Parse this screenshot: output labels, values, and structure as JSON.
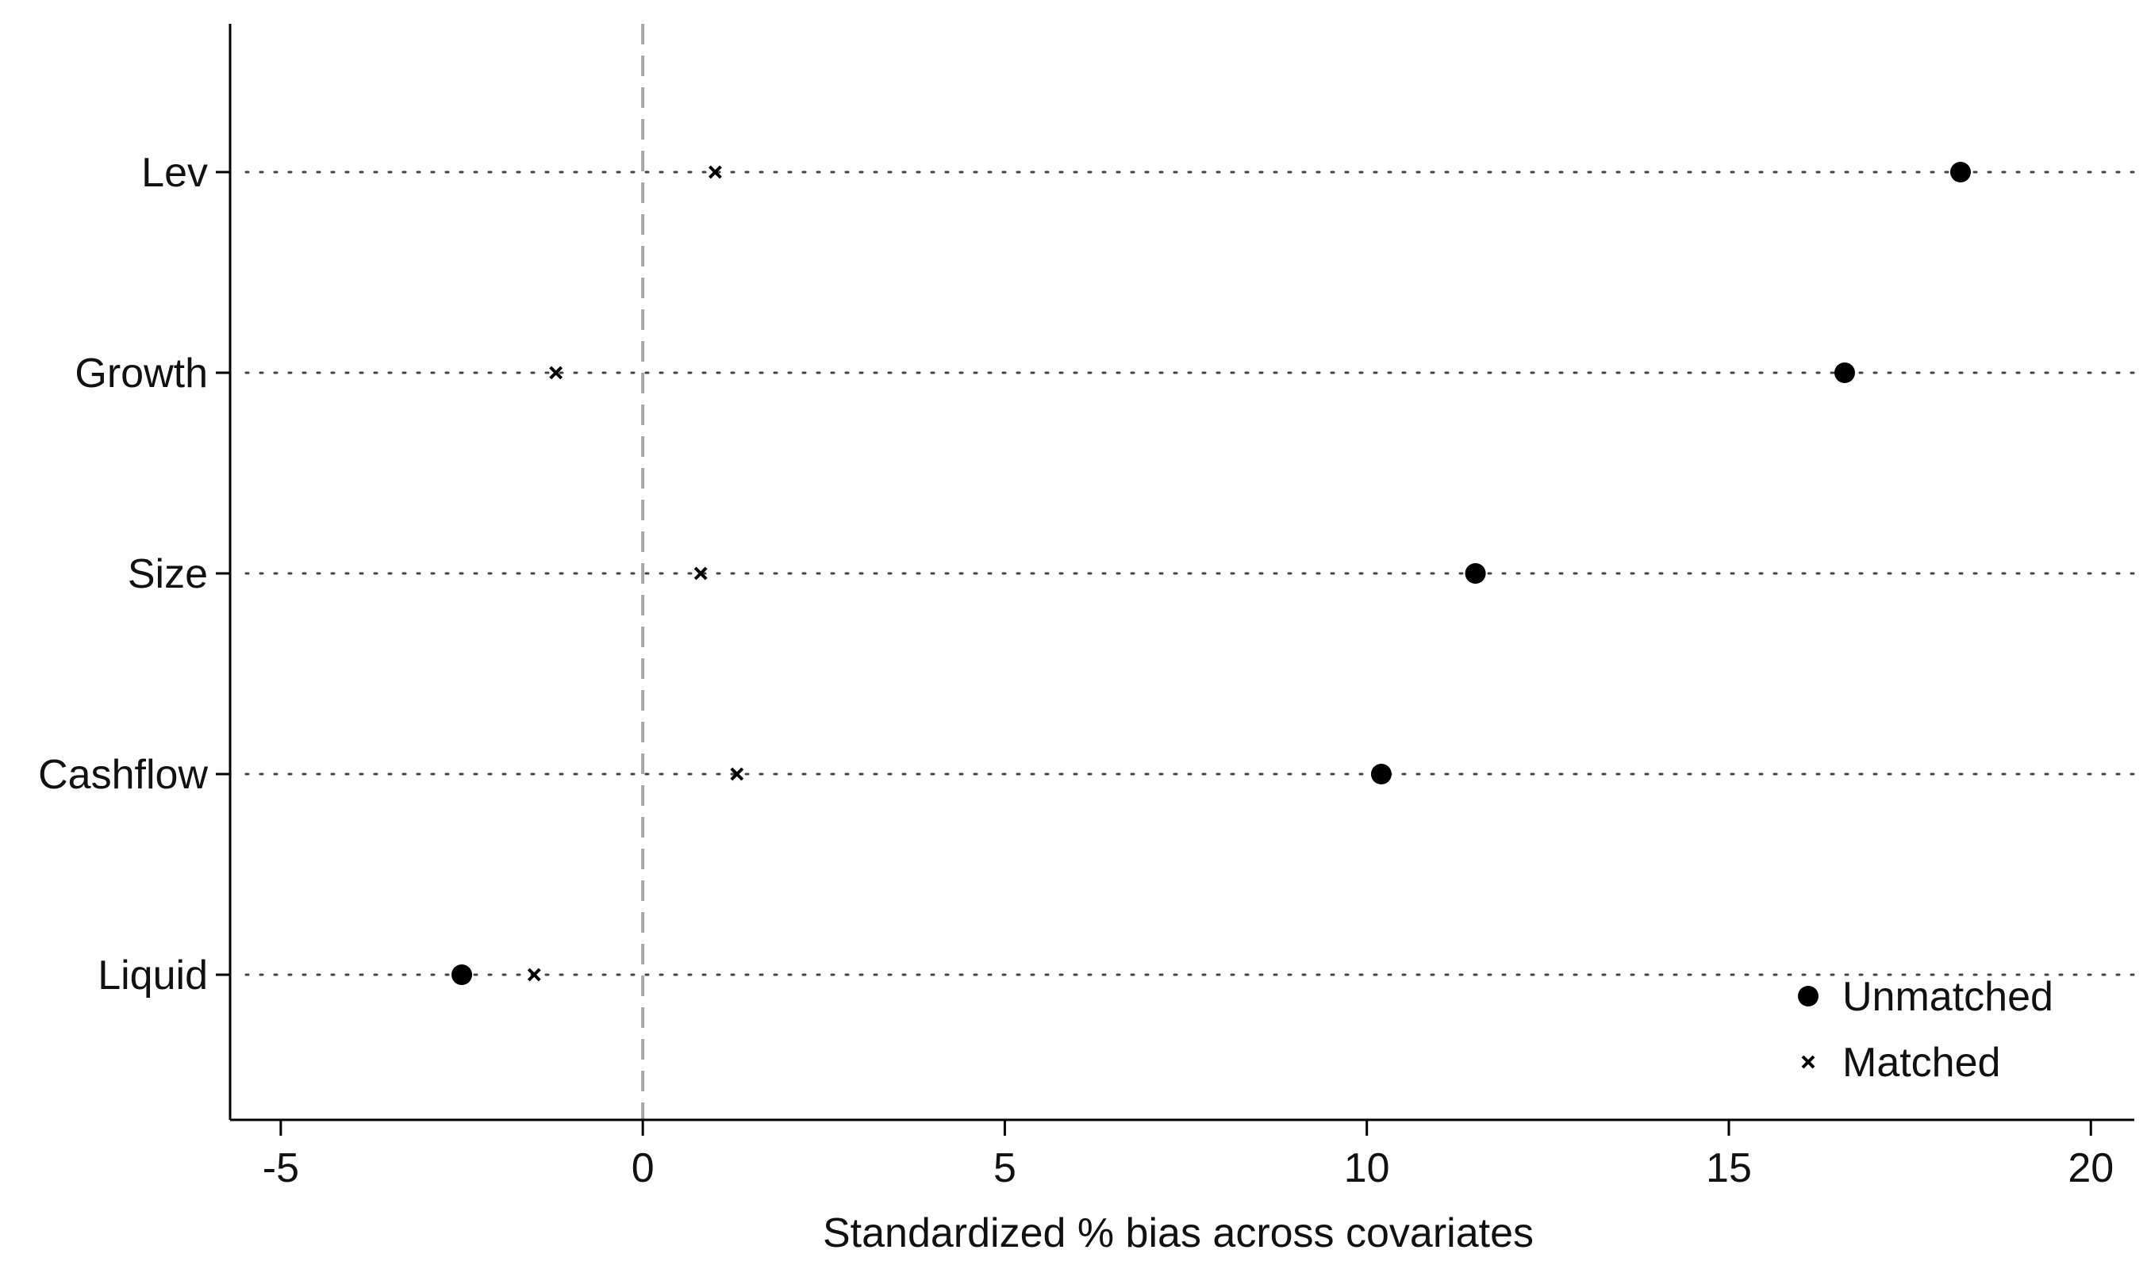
{
  "chart_data": {
    "type": "scatter",
    "title": "",
    "xlabel": "Standardized % bias across covariates",
    "ylabel": "",
    "xlim": [
      -5.7,
      20.6
    ],
    "xticks": [
      -5,
      0,
      5,
      10,
      15,
      20
    ],
    "xtick_labels": [
      "-5",
      "0",
      "5",
      "10",
      "15",
      "20"
    ],
    "reference_line_x": 0,
    "categories": [
      "Lev",
      "Growth",
      "Size",
      "Cashflow",
      "Liquid"
    ],
    "series": [
      {
        "name": "Unmatched",
        "marker": "circle",
        "values": [
          18.2,
          16.6,
          11.5,
          10.2,
          -2.5
        ]
      },
      {
        "name": "Matched",
        "marker": "x",
        "values": [
          1.0,
          -1.2,
          0.8,
          1.3,
          -1.5
        ]
      }
    ],
    "legend": {
      "position": "bottom-right"
    },
    "grid": "dotted horizontal lines per category",
    "colors": {
      "marker": "#000000",
      "axis": "#000000",
      "reference_line": "#a6a6a6",
      "gridline": "#444444"
    }
  }
}
